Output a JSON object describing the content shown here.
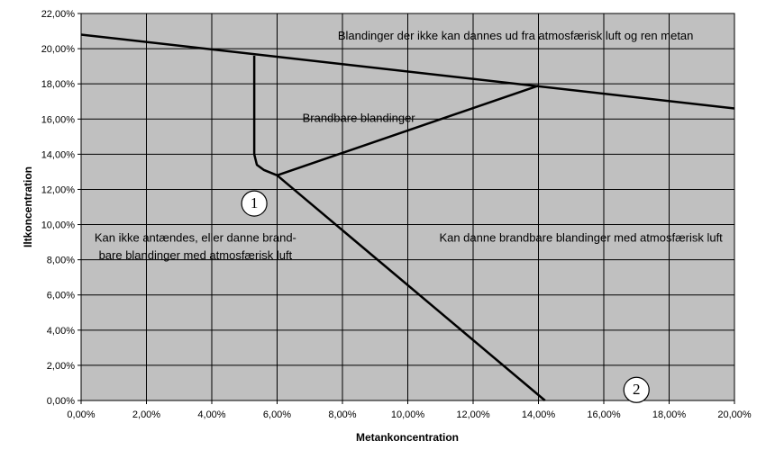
{
  "chart_data": {
    "type": "line",
    "title": "",
    "xlabel": "Metankoncentration",
    "ylabel": "Iltkoncentration",
    "xlim": [
      0,
      20
    ],
    "ylim": [
      0,
      22
    ],
    "x_ticks": [
      "0,00%",
      "2,00%",
      "4,00%",
      "6,00%",
      "8,00%",
      "10,00%",
      "12,00%",
      "14,00%",
      "16,00%",
      "18,00%",
      "20,00%"
    ],
    "y_ticks": [
      "0,00%",
      "2,00%",
      "4,00%",
      "6,00%",
      "8,00%",
      "10,00%",
      "12,00%",
      "14,00%",
      "16,00%",
      "18,00%",
      "20,00%",
      "22,00%"
    ],
    "grid": true,
    "plot_background": "#c0c0c0",
    "line_color": "#000000",
    "series": [
      {
        "x": [
          0,
          20
        ],
        "y": [
          20.8,
          16.6
        ]
      },
      {
        "x": [
          5.3,
          5.3,
          5.38,
          5.6,
          6.0
        ],
        "y": [
          19.6,
          14.0,
          13.4,
          13.1,
          12.8
        ]
      },
      {
        "x": [
          6.0,
          14.0
        ],
        "y": [
          12.8,
          17.9
        ]
      },
      {
        "x": [
          6.0,
          14.2
        ],
        "y": [
          12.8,
          0.0
        ]
      }
    ],
    "annotations": [
      {
        "text": "Blandinger der ikke kan dannes ud fra atmosfærisk luft og ren metan",
        "x": 13.3,
        "y": 20.7
      },
      {
        "text": "Brandbare blandinger",
        "x": 8.5,
        "y": 16.0
      },
      {
        "text": "Kan ikke antændes, eller danne brand-",
        "x": 3.5,
        "y": 9.2
      },
      {
        "text": "bare blandinger med atmosfærisk luft",
        "x": 3.5,
        "y": 8.2
      },
      {
        "text": "Kan danne brandbare blandinger med atmosfærisk luft",
        "x": 15.3,
        "y": 9.2
      }
    ],
    "markers": [
      {
        "label": "1",
        "x": 5.3,
        "y": 11.2
      },
      {
        "label": "2",
        "x": 17.0,
        "y": 0.6
      }
    ]
  }
}
